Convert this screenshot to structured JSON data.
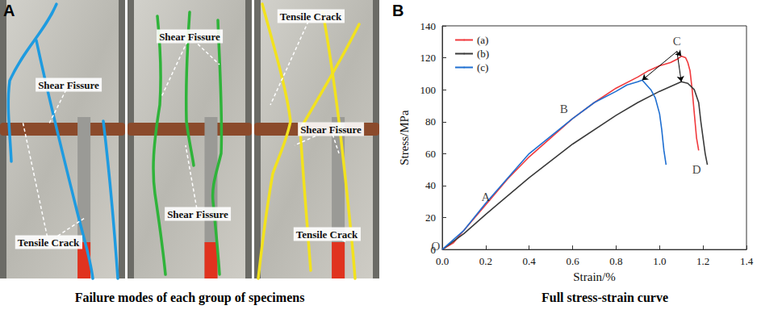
{
  "figure": {
    "panel_a": {
      "label": "A",
      "caption": "Failure modes of each group of specimens",
      "photos": [
        {
          "annotations": [
            "Shear Fissure",
            "Tensile Crack"
          ]
        },
        {
          "annotations": [
            "Shear Fissure",
            "Shear Fissure"
          ]
        },
        {
          "annotations": [
            "Tensile Crack",
            "Shear Fissure",
            "Tensile Crack"
          ]
        }
      ]
    },
    "panel_b": {
      "label": "B",
      "caption": "Full stress-strain curve"
    }
  },
  "chart_data": {
    "type": "line",
    "x_label": "Strain/%",
    "y_label": "Stress/MPa",
    "xlim": [
      0,
      1.4
    ],
    "xticks": [
      {
        "value": 0,
        "label": "0.0"
      },
      0.2,
      0.4,
      0.6,
      0.8,
      {
        "value": 1,
        "label": "1.0"
      },
      1.2,
      1.4
    ],
    "ylim": [
      0,
      140
    ],
    "yticks": [
      0,
      20,
      40,
      60,
      80,
      100,
      120,
      140
    ],
    "grid": false,
    "legend": "top-left",
    "series": [
      {
        "name": "(a)",
        "color": "#f0393c",
        "x": [
          0,
          0.05,
          0.1,
          0.2,
          0.3,
          0.4,
          0.5,
          0.6,
          0.7,
          0.8,
          0.9,
          0.95,
          1.0,
          1.05,
          1.08,
          1.1,
          1.12,
          1.13,
          1.14,
          1.15,
          1.16,
          1.17,
          1.18
        ],
        "values": [
          0,
          4,
          12,
          28,
          44,
          58,
          70,
          82,
          92,
          101,
          108,
          112,
          115,
          117,
          119,
          121,
          120,
          117,
          112,
          100,
          85,
          70,
          62
        ]
      },
      {
        "name": "(b)",
        "color": "#3a3a3a",
        "x": [
          0,
          0.1,
          0.2,
          0.4,
          0.6,
          0.8,
          0.9,
          1.0,
          1.05,
          1.1,
          1.13,
          1.16,
          1.18,
          1.19,
          1.2,
          1.21,
          1.22
        ],
        "values": [
          0,
          10,
          22,
          45,
          66,
          84,
          92,
          99,
          102,
          105,
          104,
          100,
          92,
          80,
          70,
          60,
          53
        ]
      },
      {
        "name": "(c)",
        "color": "#1f6fd1",
        "x": [
          0,
          0.1,
          0.2,
          0.4,
          0.6,
          0.7,
          0.8,
          0.85,
          0.9,
          0.92,
          0.94,
          0.96,
          0.98,
          1.0,
          1.01,
          1.02,
          1.03
        ],
        "values": [
          0,
          12,
          29,
          60,
          82,
          92,
          99,
          103,
          105,
          106,
          103,
          100,
          95,
          85,
          75,
          62,
          53
        ]
      }
    ],
    "annotations": [
      {
        "text": "O",
        "x": -0.03,
        "y": 2
      },
      {
        "text": "A",
        "x": 0.2,
        "y": 33
      },
      {
        "text": "B",
        "x": 0.56,
        "y": 88
      },
      {
        "text": "C",
        "x": 1.08,
        "y": 124,
        "points_to": [
          "(a)",
          "(b)",
          "(c)"
        ]
      },
      {
        "text": "D",
        "x": 1.17,
        "y": 50
      }
    ]
  }
}
